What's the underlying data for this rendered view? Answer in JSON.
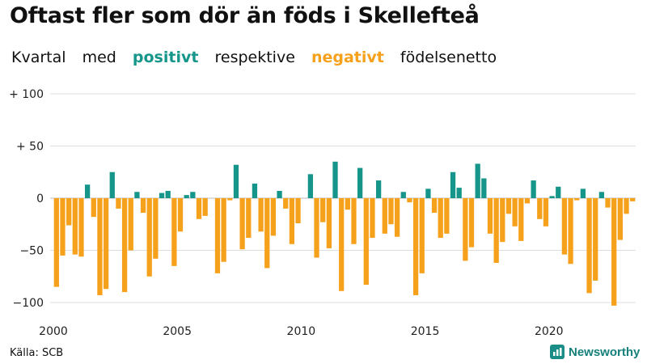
{
  "title": "Oftast fler som dör än föds i Skellefteå",
  "subtitle": {
    "word1": "Kvartal",
    "word2": "med",
    "positive": "positivt",
    "word3": "respektive",
    "negative": "negativt",
    "word4": "födelsenetto"
  },
  "source": "Källa: SCB",
  "brand": "Newsworthy",
  "colors": {
    "positive": "#16968a",
    "negative": "#f6a11c",
    "grid": "#dddddd"
  },
  "chart_data": {
    "type": "bar",
    "xlabel": "",
    "ylabel": "",
    "x_start": "2000 Q1",
    "ylim": [
      -110,
      105
    ],
    "y_ticks": [
      100,
      50,
      0,
      -50,
      -100
    ],
    "y_tick_labels": [
      "+ 100",
      "+  50",
      "0",
      "−50",
      "−100"
    ],
    "x_tick_labels": [
      "2000",
      "2005",
      "2010",
      "2015",
      "2020"
    ],
    "grid": true,
    "values": [
      -85,
      -55,
      -26,
      -54,
      -56,
      13,
      -18,
      -93,
      -87,
      25,
      -10,
      -90,
      -50,
      6,
      -14,
      -75,
      -58,
      5,
      7,
      -65,
      -32,
      3,
      6,
      -20,
      -17,
      0,
      -72,
      -61,
      -2,
      32,
      -49,
      -38,
      14,
      -32,
      -67,
      -36,
      7,
      -10,
      -44,
      -24,
      0,
      23,
      -57,
      -23,
      -48,
      35,
      -89,
      -11,
      -44,
      29,
      -83,
      -38,
      17,
      -34,
      -25,
      -37,
      6,
      -4,
      -93,
      -72,
      9,
      -14,
      -38,
      -34,
      25,
      10,
      -60,
      -47,
      33,
      19,
      -34,
      -62,
      -42,
      -15,
      -27,
      -41,
      -5,
      17,
      -20,
      -27,
      2,
      11,
      -54,
      -63,
      -2,
      9,
      -91,
      -79,
      6,
      -9,
      -103,
      -40,
      -15,
      -3
    ]
  }
}
